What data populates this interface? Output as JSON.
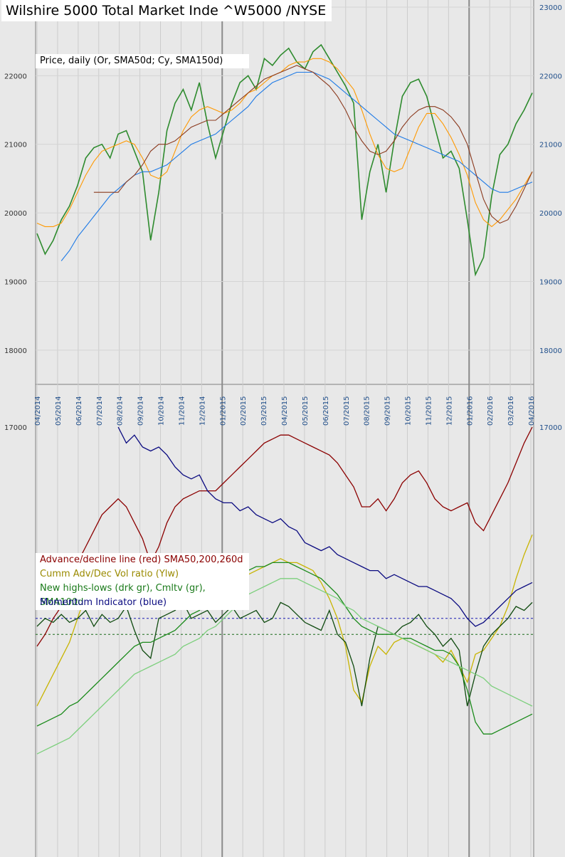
{
  "chart_data": [
    {
      "type": "line",
      "title": "Wilshire 5000 Total Market Inde ^W5000 /NYSE",
      "legend": "Price, daily (Or, SMA50d; Cy, SMA150d)",
      "ylim": [
        17500,
        23000
      ],
      "yticks": [
        18000,
        19000,
        20000,
        21000,
        22000,
        23000
      ],
      "x_labels": [
        "04/2014",
        "05/2014",
        "06/2014",
        "07/2014",
        "08/2014",
        "09/2014",
        "10/2014",
        "11/2014",
        "12/2014",
        "01/2015",
        "02/2015",
        "03/2015",
        "04/2015",
        "05/2015",
        "06/2015",
        "07/2015",
        "08/2015",
        "09/2015",
        "10/2015",
        "11/2015",
        "12/2015",
        "01/2016",
        "02/2016",
        "03/2016",
        "04/2016"
      ],
      "series": [
        {
          "name": "Price",
          "color": "#2e8b2e",
          "values": [
            19700,
            19400,
            19600,
            19900,
            20100,
            20400,
            20800,
            20950,
            21000,
            20800,
            21150,
            21200,
            20900,
            20600,
            19600,
            20300,
            21200,
            21600,
            21800,
            21500,
            21900,
            21300,
            20800,
            21200,
            21600,
            21900,
            22000,
            21800,
            22250,
            22150,
            22300,
            22400,
            22200,
            22100,
            22350,
            22450,
            22250,
            22050,
            21850,
            21600,
            19900,
            20600,
            21000,
            20300,
            21050,
            21700,
            21900,
            21950,
            21700,
            21250,
            20800,
            20900,
            20650,
            19900,
            19100,
            19350,
            20250,
            20850,
            21000,
            21300,
            21500,
            21750
          ]
        },
        {
          "name": "SMA50d",
          "color": "#ff9900",
          "values": [
            19850,
            19800,
            19800,
            19850,
            20050,
            20300,
            20550,
            20750,
            20900,
            20950,
            21000,
            21050,
            21000,
            20800,
            20550,
            20500,
            20600,
            20900,
            21200,
            21400,
            21500,
            21550,
            21500,
            21450,
            21500,
            21600,
            21750,
            21800,
            21900,
            22000,
            22050,
            22150,
            22200,
            22200,
            22250,
            22250,
            22200,
            22100,
            21950,
            21800,
            21500,
            21150,
            20850,
            20650,
            20600,
            20650,
            20950,
            21250,
            21450,
            21450,
            21300,
            21100,
            20850,
            20550,
            20150,
            19900,
            19800,
            19900,
            20050,
            20200,
            20400,
            20600
          ]
        },
        {
          "name": "SMA150d",
          "color": "#1e7ae6",
          "values": [
            null,
            null,
            null,
            19300,
            19450,
            19650,
            19800,
            19950,
            20100,
            20250,
            20350,
            20450,
            20550,
            20600,
            20600,
            20650,
            20700,
            20800,
            20900,
            21000,
            21050,
            21100,
            21150,
            21250,
            21350,
            21450,
            21550,
            21700,
            21800,
            21900,
            21950,
            22000,
            22050,
            22050,
            22050,
            22000,
            21950,
            21850,
            21750,
            21650,
            21550,
            21450,
            21350,
            21250,
            21150,
            21100,
            21050,
            21000,
            20950,
            20900,
            20850,
            20800,
            20750,
            20650,
            20550,
            20450,
            20350,
            20300,
            20300,
            20350,
            20400,
            20450
          ]
        },
        {
          "name": "SMA200d",
          "color": "#8b3a1e",
          "values": [
            null,
            null,
            null,
            null,
            null,
            null,
            null,
            20300,
            20300,
            20300,
            20300,
            20450,
            20550,
            20700,
            20900,
            21000,
            21000,
            21050,
            21150,
            21250,
            21300,
            21350,
            21350,
            21450,
            21550,
            21650,
            21750,
            21850,
            21950,
            22000,
            22050,
            22100,
            22150,
            22100,
            22050,
            21950,
            21850,
            21700,
            21500,
            21250,
            21050,
            20900,
            20850,
            20900,
            21050,
            21250,
            21400,
            21500,
            21550,
            21550,
            21500,
            21400,
            21250,
            21000,
            20600,
            20200,
            19950,
            19850,
            19900,
            20100,
            20350,
            20600
          ]
        }
      ]
    },
    {
      "type": "line",
      "title": "",
      "ylim": [
        0,
        17000
      ],
      "yticks": [
        17000
      ],
      "legend": [
        "Advance/decline line (red) SMA50,200,260d",
        "Cumm Adv/Dec Vol ratio (Ylw)",
        "New highs-lows (drk gr), Cmltv (gr), SMA100d",
        "Momentum Indicator (blue)"
      ],
      "series": [
        {
          "name": "Advance/decline line",
          "color": "#8b0000",
          "values": [
            45,
            48,
            52,
            55,
            60,
            66,
            70,
            74,
            78,
            80,
            82,
            80,
            76,
            72,
            66,
            70,
            76,
            80,
            82,
            83,
            84,
            84,
            84,
            86,
            88,
            90,
            92,
            94,
            96,
            97,
            98,
            98,
            97,
            96,
            95,
            94,
            93,
            91,
            88,
            85,
            80,
            80,
            82,
            79,
            82,
            86,
            88,
            89,
            86,
            82,
            80,
            79,
            80,
            81,
            76,
            74,
            78,
            82,
            86,
            91,
            96,
            100
          ]
        },
        {
          "name": "Cumm Adv/Dec Vol ratio",
          "color": "#c8b400",
          "values": [
            30,
            34,
            38,
            42,
            46,
            52,
            58,
            62,
            65,
            64,
            63,
            62,
            60,
            58,
            55,
            57,
            60,
            61,
            60,
            59,
            60,
            60,
            58,
            57,
            60,
            62,
            63,
            64,
            65,
            66,
            67,
            66,
            66,
            65,
            64,
            61,
            57,
            52,
            45,
            34,
            31,
            40,
            45,
            43,
            46,
            47,
            46,
            45,
            44,
            43,
            41,
            44,
            40,
            36,
            43,
            44,
            47,
            50,
            55,
            62,
            68,
            73
          ]
        },
        {
          "name": "New highs-lows",
          "color": "#0f4a0f",
          "values": [
            50,
            52,
            51,
            53,
            51,
            52,
            54,
            50,
            53,
            51,
            52,
            55,
            49,
            44,
            42,
            52,
            53,
            54,
            56,
            52,
            53,
            54,
            51,
            53,
            55,
            52,
            53,
            54,
            51,
            52,
            56,
            55,
            53,
            51,
            50,
            49,
            54,
            48,
            46,
            40,
            30,
            42,
            50,
            49,
            48,
            50,
            51,
            53,
            50,
            48,
            45,
            47,
            44,
            30,
            38,
            45,
            48,
            50,
            52,
            55,
            54,
            56
          ]
        },
        {
          "name": "Cmltv",
          "color": "#1a8a1a",
          "values": [
            25,
            26,
            27,
            28,
            30,
            31,
            33,
            35,
            37,
            39,
            41,
            43,
            45,
            46,
            46,
            47,
            48,
            49,
            51,
            53,
            54,
            56,
            58,
            60,
            62,
            63,
            64,
            65,
            65,
            66,
            66,
            66,
            65,
            64,
            63,
            62,
            60,
            58,
            55,
            52,
            50,
            49,
            48,
            48,
            48,
            47,
            47,
            46,
            45,
            44,
            44,
            43,
            40,
            34,
            26,
            23,
            23,
            24,
            25,
            26,
            27,
            28
          ]
        },
        {
          "name": "SMA100d",
          "color": "#7ccf7c",
          "values": [
            18,
            19,
            20,
            21,
            22,
            24,
            26,
            28,
            30,
            32,
            34,
            36,
            38,
            39,
            40,
            41,
            42,
            43,
            45,
            46,
            47,
            49,
            50,
            52,
            54,
            56,
            58,
            59,
            60,
            61,
            62,
            62,
            62,
            61,
            60,
            59,
            58,
            57,
            55,
            54,
            52,
            51,
            50,
            49,
            48,
            47,
            46,
            45,
            44,
            43,
            42,
            41,
            40,
            39,
            38,
            37,
            35,
            34,
            33,
            32,
            31,
            30
          ]
        },
        {
          "name": "Momentum Indicator",
          "color": "#0a0a80",
          "values": [
            null,
            null,
            null,
            null,
            null,
            null,
            null,
            null,
            null,
            null,
            100,
            96,
            98,
            95,
            94,
            95,
            93,
            90,
            88,
            87,
            88,
            84,
            82,
            81,
            81,
            79,
            80,
            78,
            77,
            76,
            77,
            75,
            74,
            71,
            70,
            69,
            70,
            68,
            67,
            66,
            65,
            64,
            64,
            62,
            63,
            62,
            61,
            60,
            60,
            59,
            58,
            57,
            55,
            52,
            50,
            51,
            53,
            55,
            57,
            59,
            60,
            61
          ]
        }
      ]
    }
  ],
  "colors": {
    "background": "#e8e8e8",
    "panel": "#e8e8e8",
    "vline": "#909090",
    "ref_blue": "#1a1ab4",
    "ref_green": "#1a6a1a"
  }
}
